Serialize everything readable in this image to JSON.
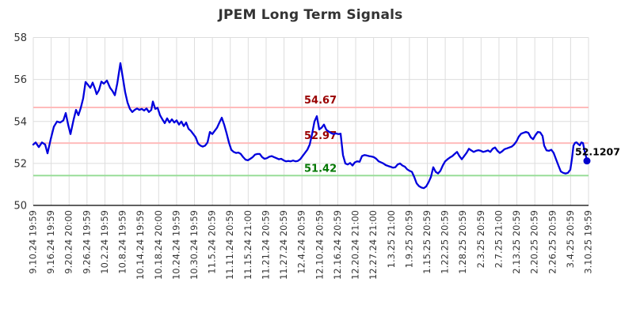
{
  "chart_data": {
    "type": "line",
    "title": "JPEM Long Term Signals",
    "grid": true,
    "legend": null,
    "ylim": [
      50,
      58
    ],
    "y_ticks": [
      50,
      52,
      54,
      56,
      58
    ],
    "x_tick_labels": [
      "9.10.24 19:59",
      "9.16.24 19:59",
      "9.20.24 20:00",
      "9.26.24 19:59",
      "10.2.24 19:59",
      "10.8.24 19:59",
      "10.14.24 19:59",
      "10.18.24 20:00",
      "10.24.24 19:59",
      "10.30.24 19:59",
      "11.5.24 20:59",
      "11.11.24 20:59",
      "11.15.24 21:00",
      "11.21.24 20:59",
      "11.27.24 20:59",
      "12.4.24 20:59",
      "12.10.24 20:59",
      "12.16.24 20:59",
      "12.20.24 21:00",
      "12.27.24 21:00",
      "1.3.25 21:00",
      "1.9.25 20:59",
      "1.15.25 20:59",
      "1.22.25 20:59",
      "1.28.25 20:59",
      "2.3.25 20:59",
      "2.7.25 21:00",
      "2.13.25 20:59",
      "2.20.25 20:59",
      "2.26.25 20:59",
      "3.4.25 20:59",
      "3.10.25 19:59"
    ],
    "signal_lines": [
      {
        "label": "54.67",
        "value": 54.67,
        "line_color": "#ffbbbb",
        "label_color": "#990000"
      },
      {
        "label": "52.97",
        "value": 52.97,
        "line_color": "#ffbbbb",
        "label_color": "#990000"
      },
      {
        "label": "51.42",
        "value": 51.42,
        "line_color": "#99dd99",
        "label_color": "#007700"
      }
    ],
    "last_point": {
      "label": "52.1207",
      "value": 52.1207,
      "label_color": "#000000",
      "dot_color": "#0000cc"
    },
    "series": [
      {
        "name": "JPEM",
        "color": "#0000dd",
        "x_unit": "px",
        "points": [
          [
            42,
            52.9
          ],
          [
            45,
            53.0
          ],
          [
            49,
            52.78
          ],
          [
            53,
            53.0
          ],
          [
            57,
            52.9
          ],
          [
            60,
            52.48
          ],
          [
            64,
            53.15
          ],
          [
            68,
            53.75
          ],
          [
            72,
            54.0
          ],
          [
            76,
            53.95
          ],
          [
            80,
            54.05
          ],
          [
            83,
            54.4
          ],
          [
            86,
            53.85
          ],
          [
            89,
            53.4
          ],
          [
            93,
            54.1
          ],
          [
            96,
            54.55
          ],
          [
            99,
            54.3
          ],
          [
            102,
            54.65
          ],
          [
            105,
            55.1
          ],
          [
            108,
            55.88
          ],
          [
            111,
            55.75
          ],
          [
            114,
            55.6
          ],
          [
            117,
            55.85
          ],
          [
            120,
            55.55
          ],
          [
            122,
            55.3
          ],
          [
            125,
            55.5
          ],
          [
            128,
            55.9
          ],
          [
            131,
            55.8
          ],
          [
            135,
            55.95
          ],
          [
            139,
            55.6
          ],
          [
            142,
            55.45
          ],
          [
            145,
            55.25
          ],
          [
            148,
            55.8
          ],
          [
            152,
            56.78
          ],
          [
            155,
            56.1
          ],
          [
            158,
            55.4
          ],
          [
            161,
            54.9
          ],
          [
            164,
            54.6
          ],
          [
            167,
            54.45
          ],
          [
            170,
            54.55
          ],
          [
            173,
            54.62
          ],
          [
            176,
            54.55
          ],
          [
            179,
            54.6
          ],
          [
            182,
            54.52
          ],
          [
            185,
            54.62
          ],
          [
            188,
            54.45
          ],
          [
            191,
            54.55
          ],
          [
            193,
            54.95
          ],
          [
            196,
            54.6
          ],
          [
            199,
            54.65
          ],
          [
            202,
            54.3
          ],
          [
            205,
            54.1
          ],
          [
            208,
            53.92
          ],
          [
            211,
            54.15
          ],
          [
            214,
            53.95
          ],
          [
            217,
            54.1
          ],
          [
            220,
            53.95
          ],
          [
            223,
            54.05
          ],
          [
            226,
            53.85
          ],
          [
            229,
            54.0
          ],
          [
            232,
            53.78
          ],
          [
            235,
            53.95
          ],
          [
            238,
            53.65
          ],
          [
            241,
            53.55
          ],
          [
            244,
            53.4
          ],
          [
            247,
            53.25
          ],
          [
            250,
            52.95
          ],
          [
            253,
            52.85
          ],
          [
            256,
            52.8
          ],
          [
            259,
            52.85
          ],
          [
            262,
            53.0
          ],
          [
            265,
            53.5
          ],
          [
            268,
            53.4
          ],
          [
            271,
            53.55
          ],
          [
            274,
            53.7
          ],
          [
            277,
            53.95
          ],
          [
            280,
            54.18
          ],
          [
            283,
            53.85
          ],
          [
            286,
            53.45
          ],
          [
            289,
            53.0
          ],
          [
            292,
            52.65
          ],
          [
            295,
            52.55
          ],
          [
            298,
            52.5
          ],
          [
            301,
            52.52
          ],
          [
            304,
            52.45
          ],
          [
            307,
            52.3
          ],
          [
            310,
            52.18
          ],
          [
            313,
            52.15
          ],
          [
            316,
            52.22
          ],
          [
            319,
            52.3
          ],
          [
            322,
            52.42
          ],
          [
            325,
            52.45
          ],
          [
            328,
            52.45
          ],
          [
            331,
            52.3
          ],
          [
            334,
            52.22
          ],
          [
            337,
            52.25
          ],
          [
            340,
            52.32
          ],
          [
            343,
            52.35
          ],
          [
            346,
            52.3
          ],
          [
            349,
            52.25
          ],
          [
            352,
            52.2
          ],
          [
            355,
            52.22
          ],
          [
            358,
            52.15
          ],
          [
            361,
            52.1
          ],
          [
            364,
            52.12
          ],
          [
            367,
            52.1
          ],
          [
            370,
            52.14
          ],
          [
            373,
            52.1
          ],
          [
            376,
            52.12
          ],
          [
            379,
            52.2
          ],
          [
            382,
            52.35
          ],
          [
            385,
            52.5
          ],
          [
            388,
            52.65
          ],
          [
            391,
            52.9
          ],
          [
            394,
            53.4
          ],
          [
            397,
            54.0
          ],
          [
            400,
            54.25
          ],
          [
            403,
            53.62
          ],
          [
            406,
            53.7
          ],
          [
            409,
            53.85
          ],
          [
            412,
            53.6
          ],
          [
            415,
            53.52
          ],
          [
            418,
            53.45
          ],
          [
            421,
            53.4
          ],
          [
            424,
            53.43
          ],
          [
            427,
            53.4
          ],
          [
            430,
            53.42
          ],
          [
            433,
            52.4
          ],
          [
            436,
            52.0
          ],
          [
            439,
            51.95
          ],
          [
            442,
            52.02
          ],
          [
            445,
            51.9
          ],
          [
            448,
            52.05
          ],
          [
            451,
            52.1
          ],
          [
            454,
            52.08
          ],
          [
            457,
            52.35
          ],
          [
            460,
            52.4
          ],
          [
            463,
            52.38
          ],
          [
            466,
            52.35
          ],
          [
            469,
            52.33
          ],
          [
            472,
            52.3
          ],
          [
            475,
            52.22
          ],
          [
            478,
            52.1
          ],
          [
            481,
            52.05
          ],
          [
            484,
            52.0
          ],
          [
            487,
            51.92
          ],
          [
            490,
            51.88
          ],
          [
            493,
            51.84
          ],
          [
            496,
            51.8
          ],
          [
            499,
            51.82
          ],
          [
            502,
            51.95
          ],
          [
            505,
            52.0
          ],
          [
            508,
            51.9
          ],
          [
            511,
            51.85
          ],
          [
            514,
            51.72
          ],
          [
            517,
            51.65
          ],
          [
            520,
            51.6
          ],
          [
            523,
            51.35
          ],
          [
            526,
            51.05
          ],
          [
            529,
            50.92
          ],
          [
            532,
            50.85
          ],
          [
            535,
            50.82
          ],
          [
            538,
            50.9
          ],
          [
            541,
            51.1
          ],
          [
            544,
            51.35
          ],
          [
            547,
            51.82
          ],
          [
            550,
            51.6
          ],
          [
            553,
            51.52
          ],
          [
            556,
            51.65
          ],
          [
            559,
            51.9
          ],
          [
            562,
            52.1
          ],
          [
            565,
            52.2
          ],
          [
            568,
            52.28
          ],
          [
            571,
            52.35
          ],
          [
            574,
            52.45
          ],
          [
            577,
            52.55
          ],
          [
            580,
            52.35
          ],
          [
            583,
            52.2
          ],
          [
            586,
            52.35
          ],
          [
            589,
            52.5
          ],
          [
            592,
            52.7
          ],
          [
            595,
            52.62
          ],
          [
            598,
            52.55
          ],
          [
            601,
            52.6
          ],
          [
            604,
            52.63
          ],
          [
            607,
            52.6
          ],
          [
            610,
            52.55
          ],
          [
            613,
            52.58
          ],
          [
            616,
            52.62
          ],
          [
            619,
            52.55
          ],
          [
            622,
            52.7
          ],
          [
            625,
            52.76
          ],
          [
            628,
            52.6
          ],
          [
            631,
            52.5
          ],
          [
            634,
            52.58
          ],
          [
            637,
            52.68
          ],
          [
            640,
            52.72
          ],
          [
            643,
            52.76
          ],
          [
            646,
            52.8
          ],
          [
            649,
            52.9
          ],
          [
            652,
            53.05
          ],
          [
            655,
            53.28
          ],
          [
            658,
            53.42
          ],
          [
            661,
            53.46
          ],
          [
            664,
            53.5
          ],
          [
            667,
            53.46
          ],
          [
            670,
            53.25
          ],
          [
            673,
            53.15
          ],
          [
            676,
            53.35
          ],
          [
            679,
            53.5
          ],
          [
            682,
            53.48
          ],
          [
            685,
            53.3
          ],
          [
            687,
            52.85
          ],
          [
            690,
            52.62
          ],
          [
            693,
            52.6
          ],
          [
            696,
            52.65
          ],
          [
            699,
            52.5
          ],
          [
            702,
            52.2
          ],
          [
            705,
            51.9
          ],
          [
            708,
            51.62
          ],
          [
            711,
            51.55
          ],
          [
            714,
            51.52
          ],
          [
            717,
            51.55
          ],
          [
            720,
            51.7
          ],
          [
            722,
            52.2
          ],
          [
            724,
            52.85
          ],
          [
            726,
            52.98
          ],
          [
            728,
            53.0
          ],
          [
            730,
            52.92
          ],
          [
            732,
            52.86
          ],
          [
            734,
            53.0
          ],
          [
            736,
            52.97
          ],
          [
            738,
            52.6
          ],
          [
            740,
            52.3
          ],
          [
            741,
            52.12
          ]
        ]
      }
    ],
    "colors": {
      "grid": "#dddddd",
      "axis": "#000000",
      "tick_label": "#333333",
      "title": "#333333"
    }
  }
}
